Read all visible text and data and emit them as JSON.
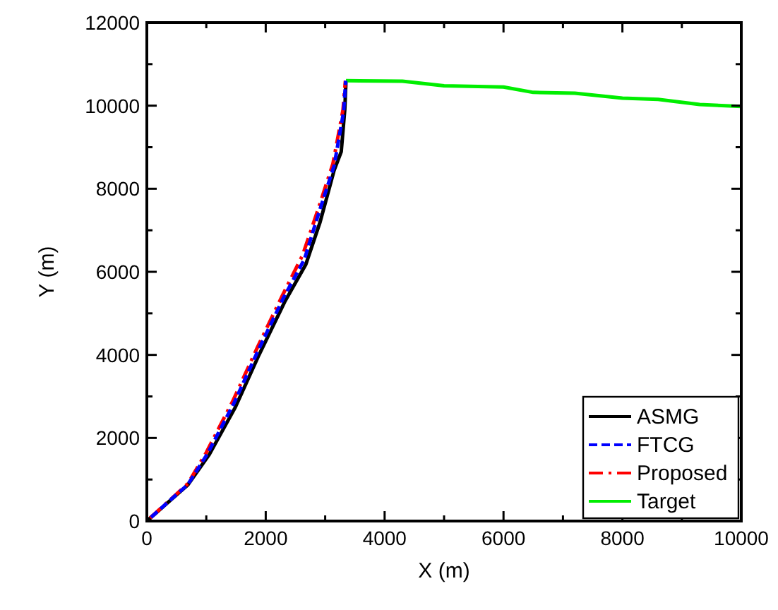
{
  "chart_data": {
    "type": "line",
    "xlabel": "X (m)",
    "ylabel": "Y (m)",
    "xlim": [
      0,
      10000
    ],
    "ylim": [
      0,
      12000
    ],
    "xticks": [
      0,
      {
        "value": 1000,
        "label": null
      },
      2000,
      {
        "value": 3000,
        "label": null
      },
      4000,
      {
        "value": 5000,
        "label": null
      },
      6000,
      {
        "value": 7000,
        "label": null
      },
      8000,
      {
        "value": 9000,
        "label": null
      },
      10000
    ],
    "yticks": [
      0,
      {
        "value": 1000,
        "label": null
      },
      2000,
      {
        "value": 3000,
        "label": null
      },
      4000,
      {
        "value": 5000,
        "label": null
      },
      6000,
      {
        "value": 7000,
        "label": null
      },
      8000,
      {
        "value": 9000,
        "label": null
      },
      10000,
      {
        "value": 11000,
        "label": null
      },
      12000
    ],
    "grid": false,
    "legend": "bottom right",
    "series": [
      {
        "name": "ASMG",
        "color": "#000000",
        "line_style": "solid",
        "x": [
          0,
          690,
          1050,
          1485,
          1880,
          2320,
          2675,
          2915,
          3150,
          3270,
          3330,
          3350
        ],
        "values": [
          0,
          870,
          1600,
          2730,
          3980,
          5280,
          6180,
          7200,
          8440,
          8890,
          9910,
          10590
        ]
      },
      {
        "name": "FTCG",
        "color": "#0000ff",
        "line_style": "dashed",
        "x": [
          0,
          690,
          1020,
          1470,
          1870,
          2290,
          2650,
          2900,
          3150,
          3310,
          3345
        ],
        "values": [
          0,
          880,
          1620,
          2850,
          4100,
          5350,
          6300,
          7450,
          8550,
          9850,
          10600
        ]
      },
      {
        "name": "Proposed",
        "color": "#ff0000",
        "line_style": "dashdot",
        "x": [
          0,
          690,
          1000,
          1450,
          1850,
          2270,
          2620,
          2880,
          3130,
          3300,
          3340
        ],
        "values": [
          0,
          900,
          1650,
          2900,
          4150,
          5400,
          6400,
          7500,
          8600,
          9900,
          10600
        ]
      },
      {
        "name": "Target",
        "color": "#00ee00",
        "line_style": "solid",
        "x": [
          3350,
          4300,
          5000,
          6000,
          6500,
          7200,
          8000,
          8600,
          9300,
          10000
        ],
        "values": [
          10600,
          10590,
          10480,
          10450,
          10320,
          10300,
          10180,
          10150,
          10030,
          9980
        ]
      }
    ]
  }
}
